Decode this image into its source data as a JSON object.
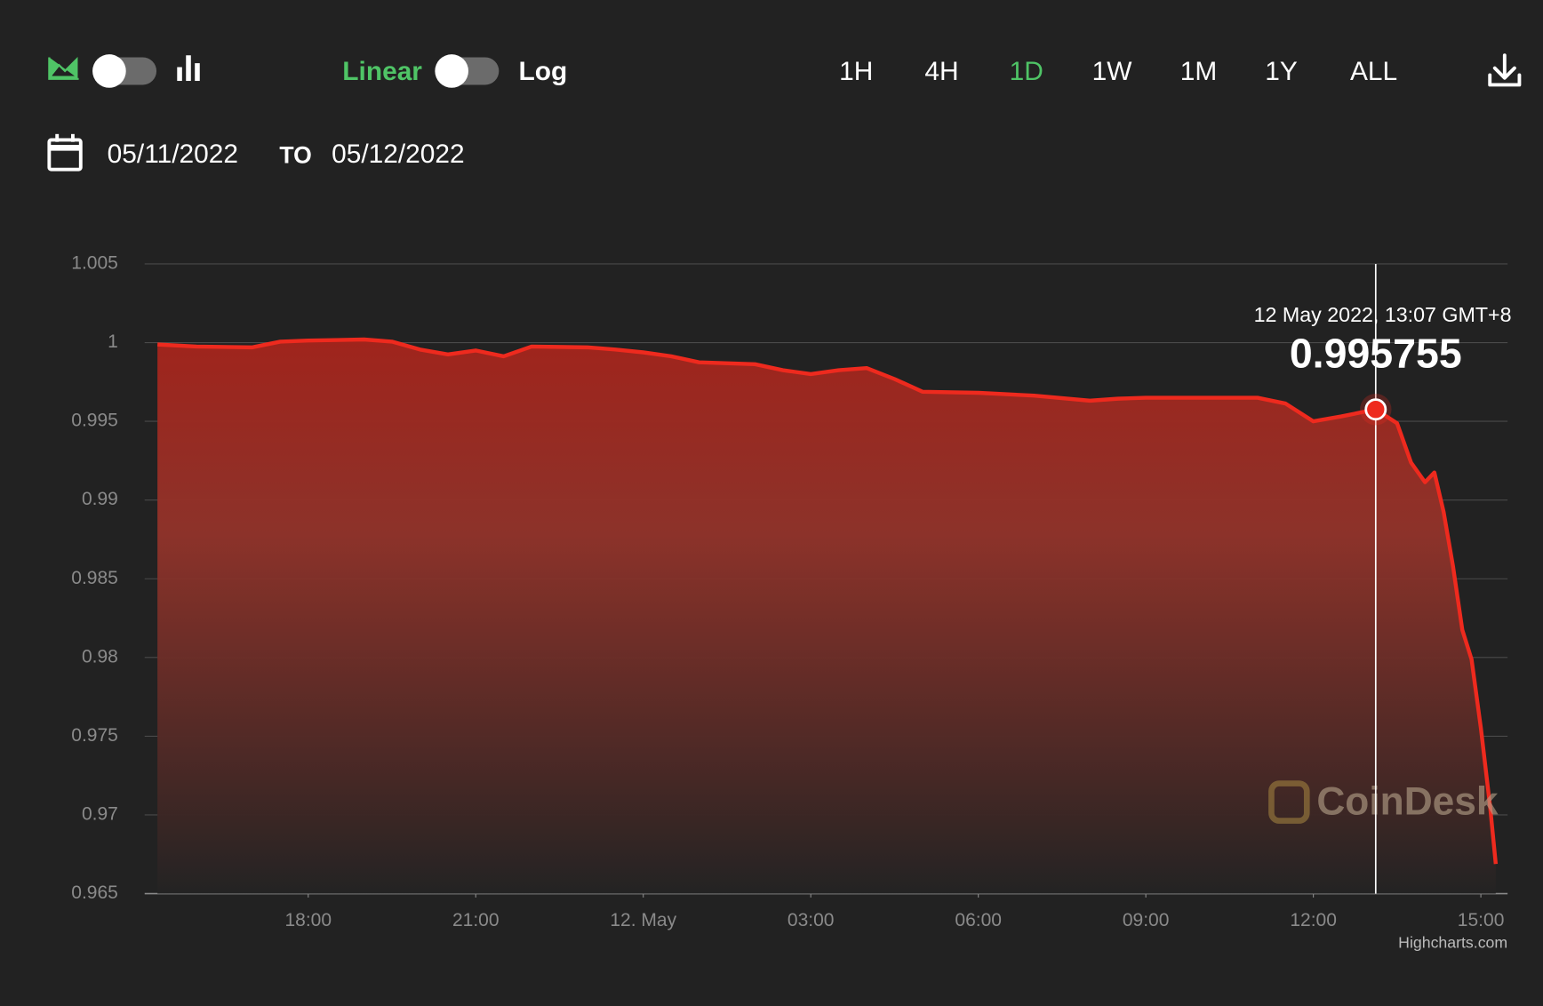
{
  "toolbar": {
    "scale_options": [
      "Linear",
      "Log"
    ],
    "ranges": [
      "1H",
      "4H",
      "1D",
      "1W",
      "1M",
      "1Y",
      "ALL"
    ],
    "active_range": "1D",
    "date_from": "05/11/2022",
    "to_label": "TO",
    "date_to": "05/12/2022"
  },
  "chart_data": {
    "type": "area",
    "x": [
      "2022-05-11T15:18",
      "2022-05-11T16:00",
      "2022-05-11T17:00",
      "2022-05-11T17:30",
      "2022-05-11T18:00",
      "2022-05-11T19:00",
      "2022-05-11T19:30",
      "2022-05-11T20:00",
      "2022-05-11T20:30",
      "2022-05-11T21:00",
      "2022-05-11T21:30",
      "2022-05-11T22:00",
      "2022-05-11T23:00",
      "2022-05-11T23:30",
      "2022-05-12T00:00",
      "2022-05-12T00:30",
      "2022-05-12T01:00",
      "2022-05-12T02:00",
      "2022-05-12T02:30",
      "2022-05-12T03:00",
      "2022-05-12T03:30",
      "2022-05-12T04:00",
      "2022-05-12T04:30",
      "2022-05-12T05:00",
      "2022-05-12T06:00",
      "2022-05-12T07:00",
      "2022-05-12T08:00",
      "2022-05-12T08:30",
      "2022-05-12T09:00",
      "2022-05-12T10:00",
      "2022-05-12T11:00",
      "2022-05-12T11:30",
      "2022-05-12T12:00",
      "2022-05-12T12:30",
      "2022-05-12T13:07",
      "2022-05-12T13:30",
      "2022-05-12T13:45",
      "2022-05-12T14:00",
      "2022-05-12T14:10",
      "2022-05-12T14:20",
      "2022-05-12T14:30",
      "2022-05-12T14:40",
      "2022-05-12T14:50",
      "2022-05-12T15:00",
      "2022-05-12T15:10",
      "2022-05-12T15:16"
    ],
    "values": [
      0.99988,
      0.99975,
      0.9997,
      1.00006,
      1.00013,
      1.0002,
      1.00006,
      0.99956,
      0.99925,
      0.9995,
      0.99913,
      0.99975,
      0.9997,
      0.99956,
      0.99938,
      0.99913,
      0.99875,
      0.99863,
      0.99825,
      0.998,
      0.99825,
      0.99838,
      0.99769,
      0.99688,
      0.99681,
      0.99663,
      0.99631,
      0.99644,
      0.9965,
      0.9965,
      0.9965,
      0.99613,
      0.995,
      0.99531,
      0.995755,
      0.99488,
      0.99238,
      0.99113,
      0.99175,
      0.98925,
      0.98581,
      0.98175,
      0.97988,
      0.9755,
      0.9705,
      0.96688
    ],
    "color": "#ee2a1e",
    "xlim": [
      "2022-05-11T15:18",
      "2022-05-12T15:16"
    ],
    "xticks": [
      {
        "value": "2022-05-11T18:00",
        "label": "18:00"
      },
      {
        "value": "2022-05-11T21:00",
        "label": "21:00"
      },
      {
        "value": "2022-05-12T00:00",
        "label": "12. May"
      },
      {
        "value": "2022-05-12T03:00",
        "label": "03:00"
      },
      {
        "value": "2022-05-12T06:00",
        "label": "06:00"
      },
      {
        "value": "2022-05-12T09:00",
        "label": "09:00"
      },
      {
        "value": "2022-05-12T12:00",
        "label": "12:00"
      },
      {
        "value": "2022-05-12T15:00",
        "label": "15:00"
      }
    ],
    "ylim": [
      0.965,
      1.005
    ],
    "yticks": [
      0.965,
      0.97,
      0.975,
      0.98,
      0.985,
      0.99,
      0.995,
      1,
      1.005
    ],
    "grid": true,
    "tooltip": {
      "label": "12 May 2022, 13:07 GMT+8",
      "x": "2022-05-12T13:07",
      "value": 0.995755
    },
    "watermark": "CoinDesk",
    "credits": "Highcharts.com"
  }
}
